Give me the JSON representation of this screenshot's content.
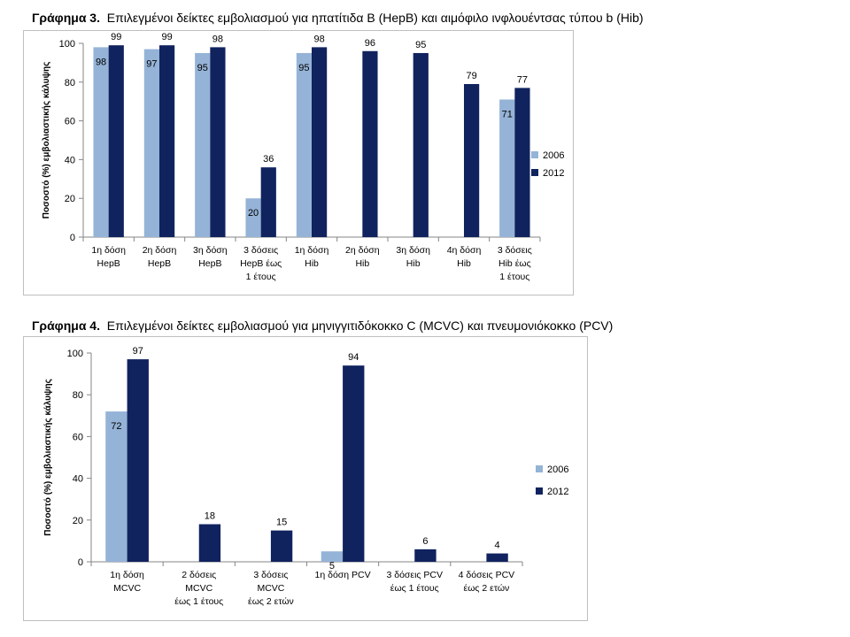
{
  "figures": [
    {
      "label": "Γράφημα 3.",
      "caption": "Επιλεγμένοι δείκτες εμβολιασμού για ηπατίτιδα Β (HepB) και αιμόφιλο ινφλουέντσας τύπου b (Hib)"
    },
    {
      "label": "Γράφημα 4.",
      "caption": "Επιλεγμένοι δείκτες εμβολιασμού για μηνιγγιτιδόκοκκο C (MCVC) και πνευμονιόκοκκο (PCV)"
    }
  ],
  "colors": {
    "s2006": "#95b3d7",
    "s2012": "#10235e",
    "axis": "#868686"
  },
  "chart_data": [
    {
      "type": "bar",
      "ylabel": "Ποσοστό (%) εμβολιαστικής κάλυψης",
      "ylim": [
        0,
        100
      ],
      "yticks": [
        0,
        20,
        40,
        60,
        80,
        100
      ],
      "legend_position": "right",
      "grid": false,
      "categories": [
        [
          "1η δόση",
          "HepB"
        ],
        [
          "2η δόση",
          "HepB"
        ],
        [
          "3η δόση",
          "HepB"
        ],
        [
          "3 δόσεις",
          "HepB έως",
          "1 έτους"
        ],
        [
          "1η δόση",
          "Hib"
        ],
        [
          "2η δόση",
          "Hib"
        ],
        [
          "3η δόση",
          "Hib"
        ],
        [
          "4η δόση",
          "Hib"
        ],
        [
          "3 δόσεις",
          "Hib έως",
          "1 έτους"
        ]
      ],
      "series": [
        {
          "name": "2006",
          "values": [
            98,
            97,
            95,
            20,
            95,
            null,
            null,
            null,
            71
          ]
        },
        {
          "name": "2012",
          "values": [
            99,
            99,
            98,
            36,
            98,
            96,
            95,
            79,
            77
          ]
        }
      ]
    },
    {
      "type": "bar",
      "ylabel": "Ποσοστό (%) εμβολιαστικής κάλυψης",
      "ylim": [
        0,
        100
      ],
      "yticks": [
        0,
        20,
        40,
        60,
        80,
        100
      ],
      "legend_position": "right",
      "grid": false,
      "categories": [
        [
          "1η δόση",
          "MCVC"
        ],
        [
          "2 δόσεις",
          "MCVC",
          "έως 1 έτους"
        ],
        [
          "3 δόσεις",
          "MCVC",
          "έως 2 ετών"
        ],
        [
          "1η δόση PCV"
        ],
        [
          "3 δόσεις PCV",
          "έως 1 έτους"
        ],
        [
          "4 δόσεις PCV",
          "έως 2 ετών"
        ]
      ],
      "series": [
        {
          "name": "2006",
          "values": [
            72,
            null,
            null,
            5,
            null,
            null
          ]
        },
        {
          "name": "2012",
          "values": [
            97,
            18,
            15,
            94,
            6,
            4
          ]
        }
      ]
    }
  ]
}
